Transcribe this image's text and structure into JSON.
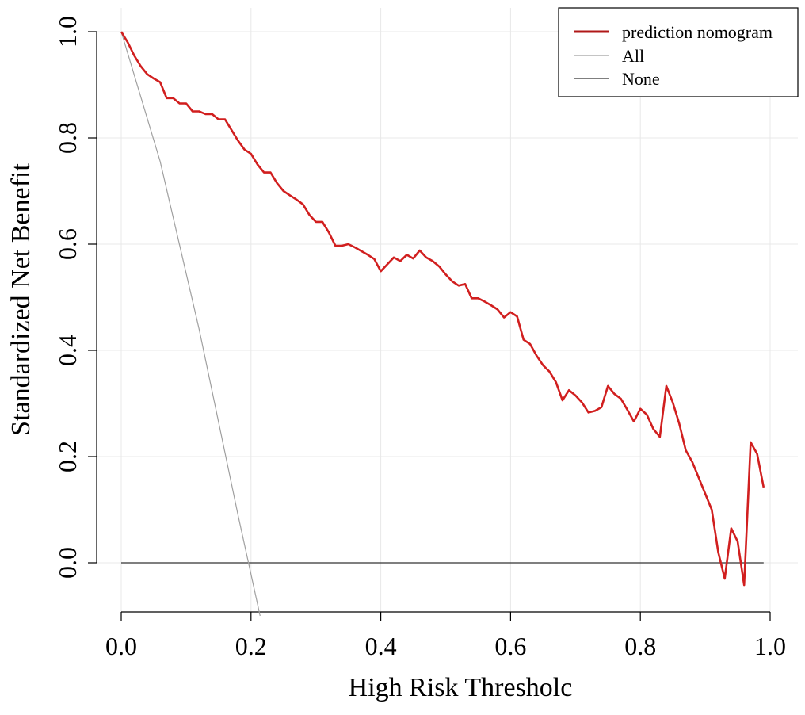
{
  "chart_data": {
    "type": "line",
    "title": "",
    "xlabel": "High Risk Thresholc",
    "ylabel": "Standardized Net Benefit",
    "xlim": [
      0,
      1
    ],
    "ylim": [
      -0.1,
      1.0
    ],
    "grid": true,
    "x_ticks": [
      0.0,
      0.2,
      0.4,
      0.6,
      0.8,
      1.0
    ],
    "x_tick_labels": [
      "0.0",
      "0.2",
      "0.4",
      "0.6",
      "0.8",
      "1.0"
    ],
    "y_ticks": [
      0.0,
      0.2,
      0.4,
      0.6,
      0.8,
      1.0
    ],
    "y_tick_labels": [
      "0.0",
      "0.2",
      "0.4",
      "0.6",
      "0.8",
      "1.0"
    ],
    "legend": {
      "position": "top-right",
      "entries": [
        "prediction nomogram",
        "All",
        "None"
      ]
    },
    "series": [
      {
        "name": "prediction nomogram",
        "color": "#d11f1f",
        "x": [
          0.0,
          0.01,
          0.02,
          0.03,
          0.04,
          0.05,
          0.06,
          0.07,
          0.08,
          0.09,
          0.1,
          0.11,
          0.12,
          0.13,
          0.14,
          0.15,
          0.16,
          0.17,
          0.18,
          0.19,
          0.2,
          0.21,
          0.22,
          0.23,
          0.24,
          0.25,
          0.26,
          0.27,
          0.28,
          0.29,
          0.3,
          0.31,
          0.32,
          0.33,
          0.34,
          0.35,
          0.36,
          0.37,
          0.38,
          0.39,
          0.4,
          0.41,
          0.42,
          0.43,
          0.44,
          0.45,
          0.46,
          0.47,
          0.48,
          0.49,
          0.5,
          0.51,
          0.52,
          0.53,
          0.54,
          0.55,
          0.56,
          0.57,
          0.58,
          0.59,
          0.6,
          0.61,
          0.62,
          0.63,
          0.64,
          0.65,
          0.66,
          0.67,
          0.68,
          0.69,
          0.7,
          0.71,
          0.72,
          0.73,
          0.74,
          0.75,
          0.76,
          0.77,
          0.78,
          0.79,
          0.8,
          0.81,
          0.82,
          0.83,
          0.84,
          0.85,
          0.86,
          0.87,
          0.88,
          0.89,
          0.9,
          0.91,
          0.92,
          0.93,
          0.94,
          0.95,
          0.96,
          0.97,
          0.98,
          0.99
        ],
        "y": [
          1.0,
          0.98,
          0.955,
          0.935,
          0.92,
          0.912,
          0.905,
          0.875,
          0.875,
          0.865,
          0.865,
          0.85,
          0.85,
          0.845,
          0.845,
          0.835,
          0.835,
          0.815,
          0.795,
          0.778,
          0.77,
          0.75,
          0.735,
          0.735,
          0.715,
          0.7,
          0.692,
          0.684,
          0.675,
          0.655,
          0.642,
          0.642,
          0.622,
          0.597,
          0.597,
          0.6,
          0.594,
          0.587,
          0.58,
          0.572,
          0.549,
          0.562,
          0.575,
          0.568,
          0.58,
          0.573,
          0.588,
          0.575,
          0.568,
          0.558,
          0.543,
          0.53,
          0.522,
          0.525,
          0.498,
          0.498,
          0.492,
          0.485,
          0.477,
          0.462,
          0.472,
          0.464,
          0.42,
          0.412,
          0.39,
          0.372,
          0.36,
          0.34,
          0.306,
          0.325,
          0.315,
          0.302,
          0.283,
          0.286,
          0.293,
          0.333,
          0.318,
          0.309,
          0.288,
          0.266,
          0.29,
          0.279,
          0.252,
          0.237,
          0.333,
          0.302,
          0.262,
          0.212,
          0.19,
          0.16,
          0.13,
          0.1,
          0.02,
          -0.03,
          0.065,
          0.04,
          -0.042,
          0.227,
          0.205,
          0.142
        ]
      },
      {
        "name": "All",
        "color": "#a0a0a0",
        "x": [
          0.0,
          0.06,
          0.12,
          0.18,
          0.214
        ],
        "y": [
          1.0,
          0.756,
          0.44,
          0.09,
          -0.1
        ]
      },
      {
        "name": "None",
        "color": "#333333",
        "x": [
          0.0,
          0.99
        ],
        "y": [
          0.0,
          0.0
        ]
      }
    ]
  }
}
